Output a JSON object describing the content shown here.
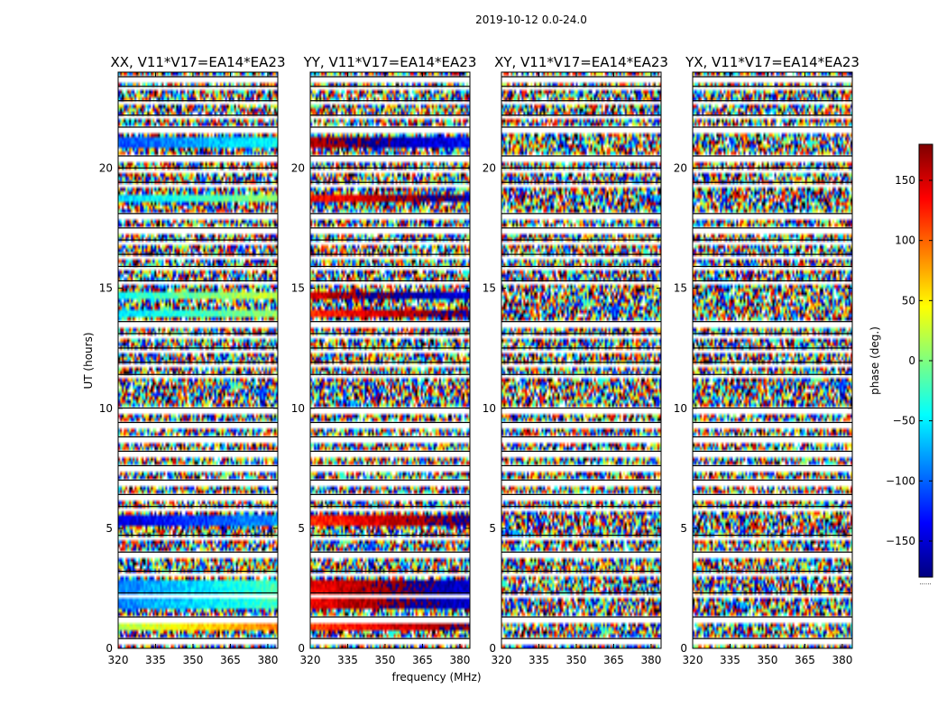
{
  "chart_data": {
    "type": "heatmap",
    "suptitle": "2019-10-12 0.0-24.0",
    "xlabel": "frequency (MHz)",
    "ylabel": "UT (hours)",
    "xticks": [
      320,
      335,
      350,
      365,
      380
    ],
    "yticks": [
      0,
      5,
      10,
      15,
      20
    ],
    "xlim": [
      320,
      384
    ],
    "ylim": [
      0,
      24
    ],
    "colorbar": {
      "label": "phase (deg.)",
      "ticks": [
        150,
        100,
        50,
        0,
        -50,
        -100,
        -150
      ],
      "range": [
        -180,
        180
      ],
      "colormap": [
        "#00007f",
        "#0000ff",
        "#007fff",
        "#00ffff",
        "#7fff7f",
        "#ffff00",
        "#ff7f00",
        "#ff0000",
        "#7f0000"
      ],
      "footnote": "......"
    },
    "panels": [
      {
        "title": "XX, V11*V17=EA14*EA23",
        "coherent_bands": [
          {
            "t0": 0.8,
            "t1": 1.0,
            "phase": 20
          },
          {
            "t0": 1.6,
            "t1": 2.8,
            "phase": -90
          },
          {
            "t0": 5.1,
            "t1": 5.5,
            "phase": -150
          },
          {
            "t0": 13.8,
            "t1": 14.1,
            "phase": -60
          },
          {
            "t0": 14.5,
            "t1": 14.8,
            "phase": -40
          },
          {
            "t0": 18.6,
            "t1": 18.9,
            "phase": -60
          },
          {
            "t0": 20.9,
            "t1": 21.3,
            "phase": -110
          }
        ]
      },
      {
        "title": "YY, V11*V17=EA14*EA23",
        "coherent_bands": [
          {
            "t0": 0.8,
            "t1": 1.0,
            "phase": 110
          },
          {
            "t0": 1.6,
            "t1": 2.8,
            "phase": 140
          },
          {
            "t0": 5.1,
            "t1": 5.5,
            "phase": 120
          },
          {
            "t0": 13.8,
            "t1": 14.1,
            "phase": 120
          },
          {
            "t0": 14.5,
            "t1": 14.8,
            "phase": 150
          },
          {
            "t0": 18.6,
            "t1": 18.9,
            "phase": 130
          },
          {
            "t0": 20.9,
            "t1": 21.3,
            "phase": 160
          }
        ]
      },
      {
        "title": "XY, V11*V17=EA14*EA23",
        "coherent_bands": []
      },
      {
        "title": "YX, V11*V17=EA14*EA23",
        "coherent_bands": []
      }
    ],
    "flagged_rows": [
      0.3,
      1.2,
      2.2,
      3.1,
      3.9,
      4.6,
      5.8,
      6.3,
      6.9,
      7.5,
      8.1,
      8.7,
      9.3,
      9.9,
      11.3,
      11.8,
      12.4,
      13.0,
      13.5,
      15.2,
      15.8,
      16.3,
      16.9,
      17.4,
      18.0,
      19.3,
      19.9,
      20.4,
      21.6,
      22.1,
      22.7,
      23.3,
      23.7
    ]
  }
}
